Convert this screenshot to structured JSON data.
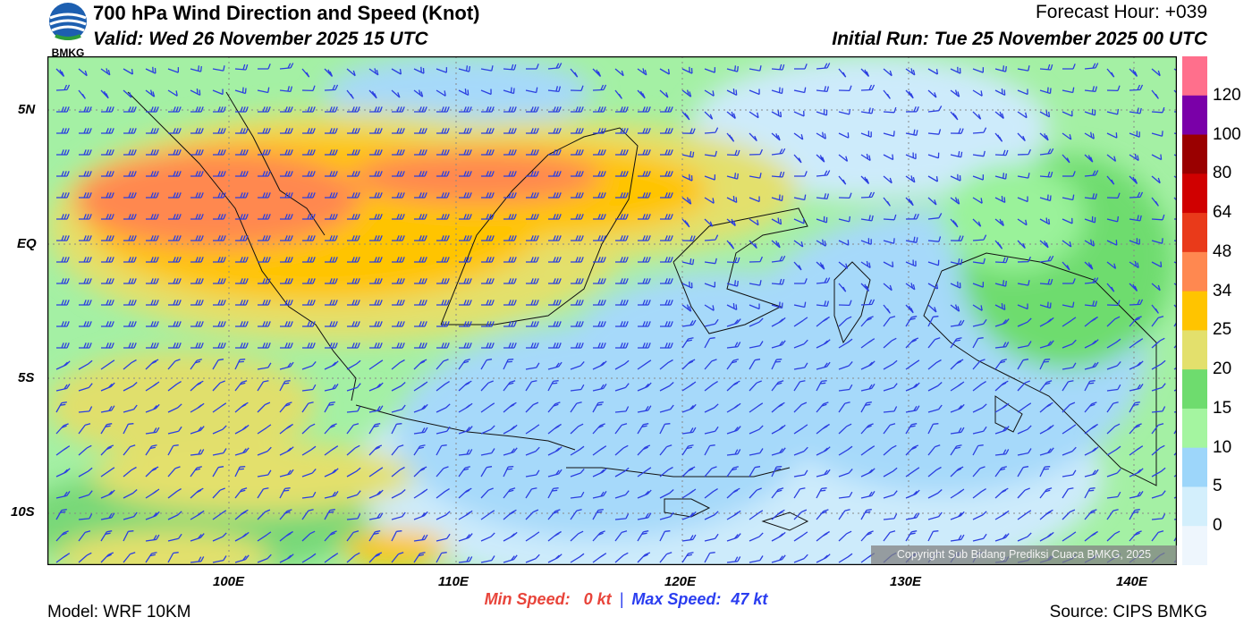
{
  "header": {
    "logo_text": "BMKG",
    "title": "700 hPa Wind Direction and Speed (Knot)",
    "valid": "Valid: Wed 26 November 2025 15 UTC",
    "forecast_hour": "Forecast Hour: +039",
    "initial_run": "Initial Run: Tue 25 November 2025 00 UTC"
  },
  "map": {
    "lat_labels": [
      "5N",
      "EQ",
      "5S",
      "10S"
    ],
    "lon_labels": [
      "100E",
      "110E",
      "120E",
      "130E",
      "140E"
    ],
    "copyright": "Copyright Sub Bidang Prediksi Cuaca BMKG, 2025",
    "barb_color": "#2b3fe0"
  },
  "colorbar": {
    "labels": [
      "120",
      "100",
      "80",
      "64",
      "48",
      "34",
      "25",
      "20",
      "15",
      "10",
      "5",
      "0"
    ],
    "colors": [
      "#ff6f8c",
      "#7a00a8",
      "#9a0000",
      "#d00000",
      "#e93a1a",
      "#ff8850",
      "#ffc400",
      "#e3e06c",
      "#6edc6e",
      "#a4f5a0",
      "#9dd6fa",
      "#d3effc",
      "#eef6fd"
    ]
  },
  "footer": {
    "model": "Model: WRF 10KM",
    "source": "Source: CIPS BMKG",
    "min_label": "Min Speed:",
    "min_value": "0 kt",
    "separator": "|",
    "max_label": "Max Speed:",
    "max_value": "47 kt"
  }
}
